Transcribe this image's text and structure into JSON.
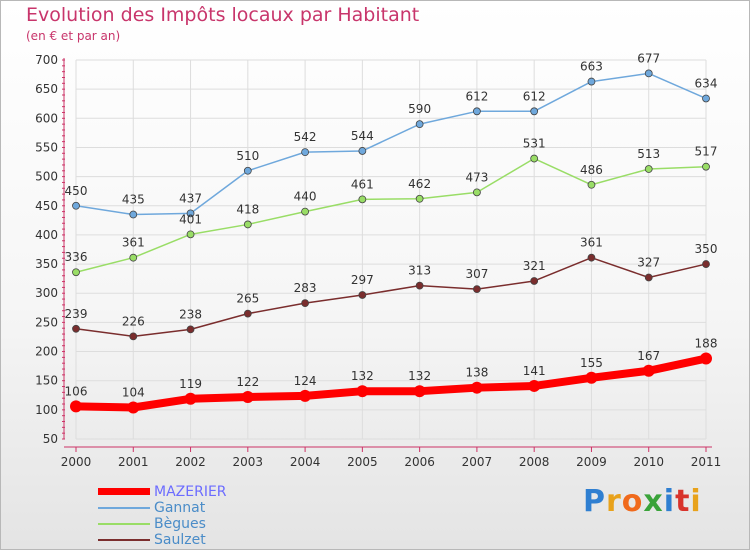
{
  "header": {
    "title": "Evolution des Impôts locaux par Habitant",
    "subtitle": "(en € et par an)"
  },
  "colors": {
    "title": "#c8356b",
    "axis": "#cc3366"
  },
  "logo": {
    "text": "Proxiti"
  },
  "chart_data": {
    "type": "line",
    "x": [
      "2000",
      "2001",
      "2002",
      "2003",
      "2004",
      "2005",
      "2006",
      "2007",
      "2008",
      "2009",
      "2010",
      "2011"
    ],
    "ylim": [
      50,
      700
    ],
    "yticks": [
      50,
      100,
      150,
      200,
      250,
      300,
      350,
      400,
      450,
      500,
      550,
      600,
      650,
      700
    ],
    "grid": true,
    "legend_position": "bottom-left",
    "series": [
      {
        "name": "MAZERIER",
        "color": "#ff0000",
        "emphasis": true,
        "values": [
          106,
          104,
          119,
          122,
          124,
          132,
          132,
          138,
          141,
          155,
          167,
          188
        ]
      },
      {
        "name": "Gannat",
        "color": "#6fa8dc",
        "values": [
          450,
          435,
          437,
          510,
          542,
          544,
          590,
          612,
          612,
          663,
          677,
          634
        ]
      },
      {
        "name": "Bègues",
        "color": "#99dd66",
        "values": [
          336,
          361,
          401,
          418,
          440,
          461,
          462,
          473,
          531,
          486,
          513,
          517
        ]
      },
      {
        "name": "Saulzet",
        "color": "#7a2d2d",
        "values": [
          239,
          226,
          238,
          265,
          283,
          297,
          313,
          307,
          321,
          361,
          327,
          350
        ]
      }
    ]
  }
}
